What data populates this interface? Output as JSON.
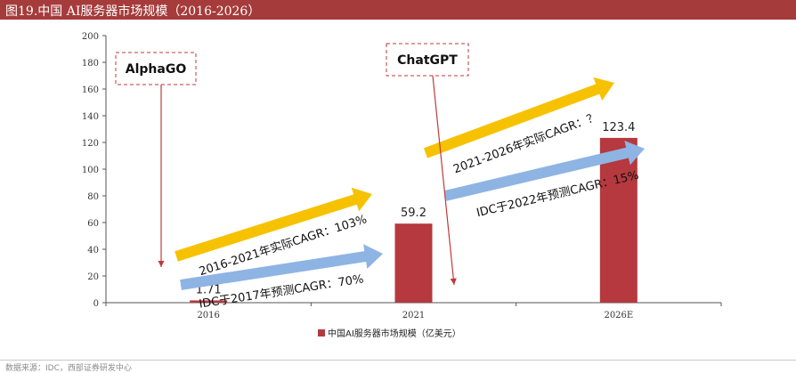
{
  "header": {
    "title": "图19.中国 AI服务器市场规模（2016-2026）"
  },
  "footer": {
    "source": "数据来源：IDC，西部证券研发中心"
  },
  "colors": {
    "header_bg": "#a63b3b",
    "bar": "#b5393e",
    "yellow_arrow": "#f6c200",
    "blue_arrow": "#8eb4e3",
    "callout_border": "#c0393b",
    "pointer": "#c0393b"
  },
  "chart_data": {
    "type": "bar",
    "categories": [
      "2016",
      "2021",
      "2026E"
    ],
    "series": [
      {
        "name": "中国AI服务器市场规模（亿美元）",
        "values": [
          1.71,
          59.2,
          123.4
        ]
      }
    ],
    "data_labels": [
      "1.71",
      "59.2",
      "123.4"
    ],
    "ylim": [
      0,
      200
    ],
    "yticks": [
      0,
      20,
      40,
      60,
      80,
      100,
      120,
      140,
      160,
      180,
      200
    ],
    "xlabel": "",
    "ylabel": "",
    "grid": false,
    "legend_position": "bottom",
    "annotations": {
      "callouts": [
        {
          "text": "AlphaGO",
          "category": "2016"
        },
        {
          "text": "ChatGPT",
          "category": "2021"
        }
      ],
      "arrows": [
        {
          "text": "2016-2021年实际CAGR：103%",
          "style": "yellow"
        },
        {
          "text": "IDC于2017年预测CAGR：70%",
          "style": "blue"
        },
        {
          "text": "2021-2026年实际CAGR：？",
          "style": "yellow"
        },
        {
          "text": "IDC于2022年预测CAGR：15%",
          "style": "blue"
        }
      ]
    }
  }
}
